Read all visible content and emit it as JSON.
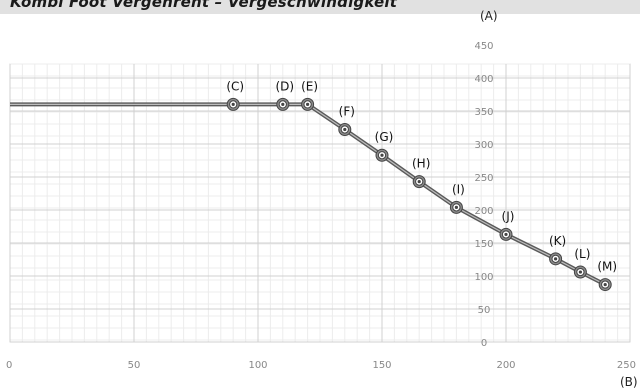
{
  "title": "Kombi Foot Vergehrent – Vergeschwindigkeit",
  "chart_data": {
    "type": "line",
    "title": "Kombi Foot Vergehrent – Vergeschwindigkeit",
    "xlabel": "(B)",
    "ylabel": "(A)",
    "xlim": [
      0,
      250
    ],
    "ylim": [
      -50,
      450
    ],
    "x_ticks": [
      0,
      50,
      100,
      150,
      200,
      250
    ],
    "y_ticks": [
      0,
      50,
      100,
      150,
      200,
      250,
      300,
      350,
      400,
      450
    ],
    "grid": true,
    "series": [
      {
        "color": "#5a5a5a",
        "points": [
          {
            "x": 0,
            "y": 360
          },
          {
            "x": 90,
            "y": 360,
            "label": "(C)"
          },
          {
            "x": 110,
            "y": 360,
            "label": "(D)"
          },
          {
            "x": 120,
            "y": 360,
            "label": "(E)"
          },
          {
            "x": 135,
            "y": 322,
            "label": "(F)"
          },
          {
            "x": 150,
            "y": 283,
            "label": "(G)"
          },
          {
            "x": 165,
            "y": 243,
            "label": "(H)"
          },
          {
            "x": 180,
            "y": 204,
            "label": "(I)"
          },
          {
            "x": 200,
            "y": 163,
            "label": "(J)"
          },
          {
            "x": 220,
            "y": 126,
            "label": "(K)"
          },
          {
            "x": 230,
            "y": 106,
            "label": "(L)"
          },
          {
            "x": 240,
            "y": 87,
            "label": "(M)"
          }
        ]
      }
    ]
  }
}
